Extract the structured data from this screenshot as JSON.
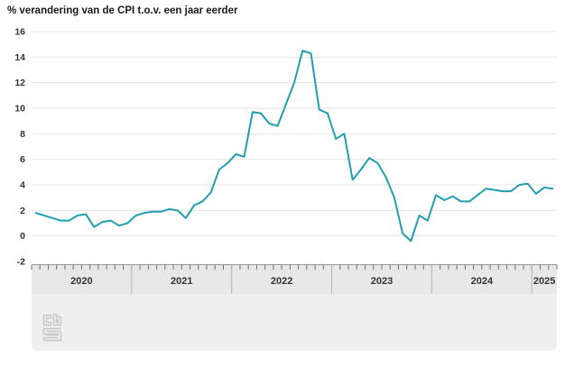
{
  "title": "% verandering van de CPI t.o.v. een jaar eerder",
  "colors": {
    "line": "#219eb3",
    "grid": "#e3e3e3",
    "panel_band": "#e8e8e8",
    "panel_lower": "#efefef",
    "panel_top_border": "#979797",
    "month_tick": "#6f6f6f",
    "year_separator": "#b5b5b5",
    "axis_text": "#333333",
    "logo_stroke": "#c6c6c6"
  },
  "y_axis": {
    "ticks": [
      16,
      14,
      12,
      10,
      8,
      6,
      4,
      2,
      0,
      -2
    ],
    "max": 16,
    "min": -2
  },
  "x_axis": {
    "years": [
      "2020",
      "2021",
      "2022",
      "2023",
      "2024",
      "2025"
    ],
    "months_per_year": [
      12,
      12,
      12,
      12,
      12,
      3
    ]
  },
  "logo_name": "cbs-logo",
  "chart_data": {
    "type": "line",
    "title": "% verandering van de CPI t.o.v. een jaar eerder",
    "x_start": "2020-01",
    "x_end": "2025-03",
    "ylim": [
      -2,
      16
    ],
    "grid": true,
    "legend": false,
    "series": [
      {
        "name": "CPI % verandering t.o.v. een jaar eerder",
        "values": [
          1.8,
          1.6,
          1.4,
          1.2,
          1.2,
          1.6,
          1.7,
          0.7,
          1.1,
          1.2,
          0.8,
          1.0,
          1.6,
          1.8,
          1.9,
          1.9,
          2.1,
          2.0,
          1.4,
          2.4,
          2.7,
          3.4,
          5.2,
          5.7,
          6.4,
          6.2,
          9.7,
          9.6,
          8.8,
          8.6,
          10.3,
          12.0,
          14.5,
          14.3,
          9.9,
          9.6,
          7.6,
          8.0,
          4.4,
          5.2,
          6.1,
          5.7,
          4.6,
          3.0,
          0.2,
          -0.4,
          1.6,
          1.2,
          3.2,
          2.8,
          3.1,
          2.7,
          2.7,
          3.2,
          3.7,
          3.6,
          3.5,
          3.5,
          4.0,
          4.1,
          3.3,
          3.8,
          3.7
        ]
      }
    ]
  }
}
